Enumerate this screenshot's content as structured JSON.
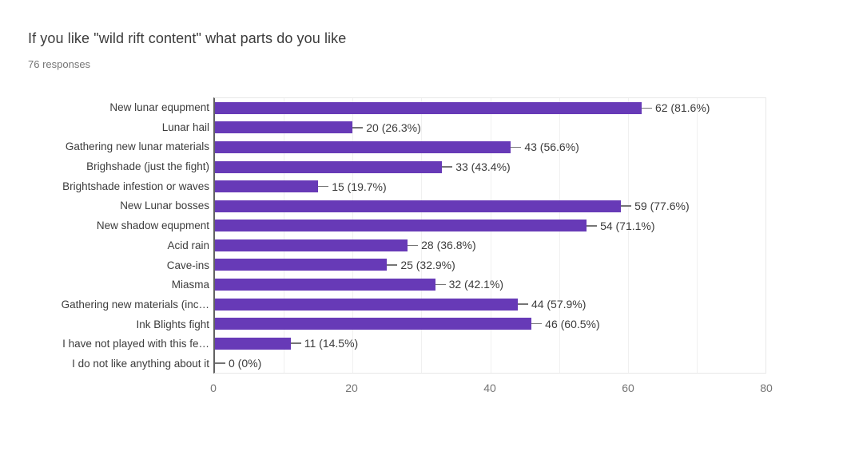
{
  "chart_data": {
    "type": "bar",
    "orientation": "horizontal",
    "title": "If you like \"wild rift content\" what parts do you like",
    "subtitle": "76 responses",
    "categories": [
      "New lunar equpment",
      "Lunar hail",
      "Gathering new lunar materials",
      "Brighshade (just the fight)",
      "Brightshade infestion or waves",
      "New Lunar bosses",
      "New shadow equpment",
      "Acid rain",
      "Cave-ins",
      "Miasma",
      "Gathering new materials (inc…",
      "Ink Blights fight",
      "I have not played with this fe…",
      "I do not like anything about it"
    ],
    "values": [
      62,
      20,
      43,
      33,
      15,
      59,
      54,
      28,
      25,
      32,
      44,
      46,
      11,
      0
    ],
    "value_labels": [
      "62 (81.6%)",
      "20 (26.3%)",
      "43 (56.6%)",
      "33 (43.4%)",
      "15 (19.7%)",
      "59 (77.6%)",
      "54 (71.1%)",
      "28 (36.8%)",
      "25 (32.9%)",
      "32 (42.1%)",
      "44 (57.9%)",
      "46 (60.5%)",
      "11 (14.5%)",
      "0 (0%)"
    ],
    "xlim": [
      0,
      80
    ],
    "x_ticks": [
      "0",
      "20",
      "40",
      "60",
      "80"
    ],
    "x_tick_values": [
      0,
      20,
      40,
      60,
      80
    ],
    "grid_interval": 10,
    "grid": "vertical-light",
    "legend_position": "none",
    "bar_color": "#673ab7",
    "text_color": "#3c3c3c",
    "muted_text_color": "#757575"
  }
}
